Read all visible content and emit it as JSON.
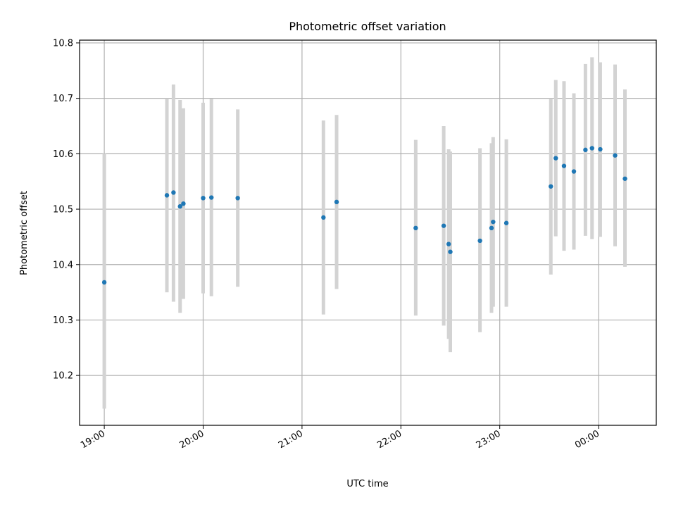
{
  "chart_data": {
    "type": "scatter",
    "title": "Photometric offset variation",
    "xlabel": "UTC time",
    "ylabel": "Photometric offset",
    "x_axis": {
      "unit": "time (UTC)",
      "range": [
        "18:45",
        "00:35"
      ],
      "ticks": [
        "19:00",
        "20:00",
        "21:00",
        "22:00",
        "23:00",
        "00:00"
      ]
    },
    "y_axis": {
      "range": [
        10.11,
        10.805
      ],
      "ticks": [
        "10.2",
        "10.3",
        "10.4",
        "10.5",
        "10.6",
        "10.7",
        "10.8"
      ]
    },
    "grid": true,
    "colors": {
      "point": "#1f77b4",
      "errorbar": "#d3d3d3"
    },
    "series": [
      {
        "points": [
          {
            "t": "19:00",
            "y": 10.368,
            "lo": 10.14,
            "hi": 10.6
          },
          {
            "t": "19:38",
            "y": 10.525,
            "lo": 10.35,
            "hi": 10.7
          },
          {
            "t": "19:42",
            "y": 10.53,
            "lo": 10.333,
            "hi": 10.725
          },
          {
            "t": "19:46",
            "y": 10.505,
            "lo": 10.313,
            "hi": 10.697
          },
          {
            "t": "19:48",
            "y": 10.51,
            "lo": 10.338,
            "hi": 10.682
          },
          {
            "t": "20:00",
            "y": 10.52,
            "lo": 10.348,
            "hi": 10.692
          },
          {
            "t": "20:05",
            "y": 10.521,
            "lo": 10.343,
            "hi": 10.699
          },
          {
            "t": "20:21",
            "y": 10.52,
            "lo": 10.36,
            "hi": 10.68
          },
          {
            "t": "21:13",
            "y": 10.485,
            "lo": 10.31,
            "hi": 10.66
          },
          {
            "t": "21:21",
            "y": 10.513,
            "lo": 10.356,
            "hi": 10.67
          },
          {
            "t": "22:09",
            "y": 10.466,
            "lo": 10.308,
            "hi": 10.625
          },
          {
            "t": "22:26",
            "y": 10.47,
            "lo": 10.29,
            "hi": 10.65
          },
          {
            "t": "22:29",
            "y": 10.437,
            "lo": 10.266,
            "hi": 10.608
          },
          {
            "t": "22:30",
            "y": 10.423,
            "lo": 10.242,
            "hi": 10.604
          },
          {
            "t": "22:48",
            "y": 10.443,
            "lo": 10.278,
            "hi": 10.61
          },
          {
            "t": "22:55",
            "y": 10.466,
            "lo": 10.313,
            "hi": 10.619
          },
          {
            "t": "22:56",
            "y": 10.477,
            "lo": 10.324,
            "hi": 10.63
          },
          {
            "t": "23:04",
            "y": 10.475,
            "lo": 10.324,
            "hi": 10.626
          },
          {
            "t": "23:31",
            "y": 10.541,
            "lo": 10.382,
            "hi": 10.7
          },
          {
            "t": "23:34",
            "y": 10.592,
            "lo": 10.451,
            "hi": 10.733
          },
          {
            "t": "23:39",
            "y": 10.578,
            "lo": 10.425,
            "hi": 10.731
          },
          {
            "t": "23:45",
            "y": 10.568,
            "lo": 10.427,
            "hi": 10.709
          },
          {
            "t": "23:52",
            "y": 10.607,
            "lo": 10.452,
            "hi": 10.762
          },
          {
            "t": "23:56",
            "y": 10.61,
            "lo": 10.446,
            "hi": 10.774
          },
          {
            "t": "00:01",
            "y": 10.608,
            "lo": 10.45,
            "hi": 10.765
          },
          {
            "t": "00:10",
            "y": 10.597,
            "lo": 10.433,
            "hi": 10.761
          },
          {
            "t": "00:16",
            "y": 10.555,
            "lo": 10.396,
            "hi": 10.716
          }
        ]
      }
    ]
  }
}
